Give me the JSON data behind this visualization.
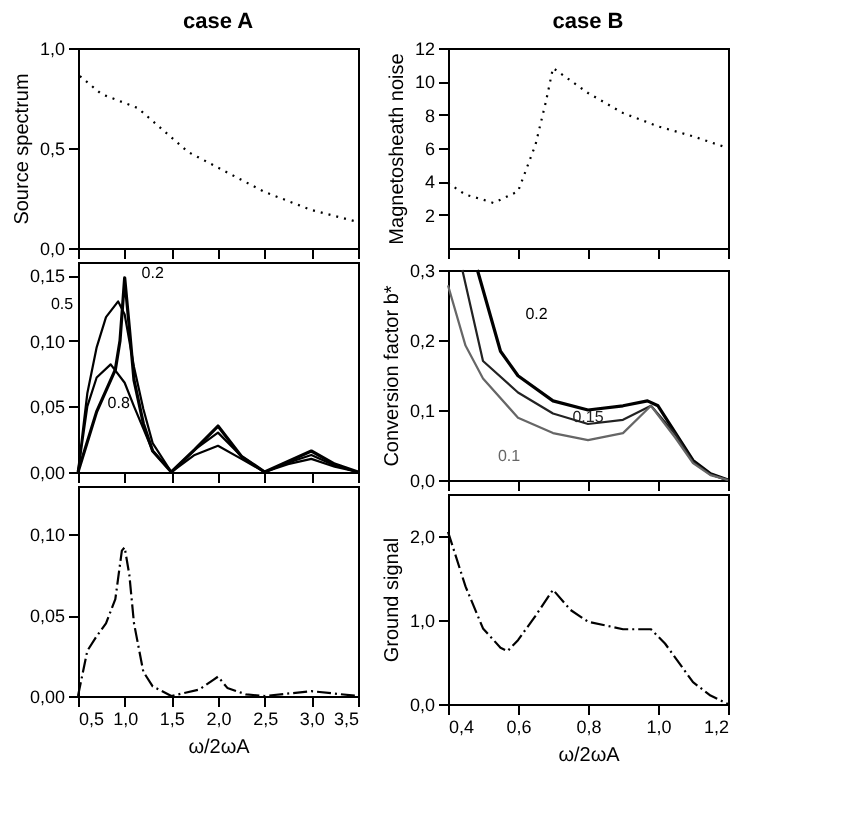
{
  "chart_data": [
    {
      "type": "line",
      "title": "case A",
      "ylabel": "Source spectrum",
      "line_style": "dotted",
      "tick_labels": "y",
      "xlim": [
        0.5,
        3.5
      ],
      "xticks": [
        0.5,
        1,
        1.5,
        2,
        2.5,
        3,
        3.5
      ],
      "ylim": [
        0,
        1
      ],
      "yticks": [
        {
          "value": 0,
          "label": "0,0"
        },
        {
          "value": 0.5,
          "label": "0,5"
        },
        {
          "value": 1,
          "label": "1,0"
        }
      ],
      "series": [
        {
          "color": "#000000",
          "x": [
            0.52,
            0.75,
            1.14,
            1.68,
            2.5,
            3.0,
            3.5
          ],
          "values": [
            0.86,
            0.77,
            0.7,
            0.48,
            0.28,
            0.19,
            0.13
          ]
        }
      ]
    },
    {
      "type": "line",
      "title": "case B",
      "ylabel": "Magnetosheath noise",
      "line_style": "dotted",
      "tick_labels": "y",
      "xlim": [
        0.4,
        1.2
      ],
      "xticks": [
        0.4,
        0.6,
        0.8,
        1.0,
        1.2
      ],
      "ylim": [
        0,
        12
      ],
      "yticks": [
        2,
        4,
        6,
        8,
        10,
        12
      ],
      "series": [
        {
          "color": "#000000",
          "x": [
            0.4,
            0.45,
            0.5,
            0.53,
            0.6,
            0.65,
            0.68,
            0.7,
            0.8,
            0.9,
            1.0,
            1.1,
            1.2
          ],
          "values": [
            3.9,
            3.2,
            2.9,
            2.7,
            3.4,
            6.2,
            8.8,
            10.8,
            9.3,
            8.1,
            7.3,
            6.7,
            6.0
          ]
        }
      ]
    },
    {
      "type": "line",
      "line_style": "solid",
      "tick_labels": "y",
      "xlim": [
        0.5,
        3.5
      ],
      "xticks": [
        0.5,
        1,
        1.5,
        2,
        2.5,
        3,
        3.5
      ],
      "ylim": [
        0,
        0.16
      ],
      "yticks": [
        {
          "value": 0,
          "label": "0,00"
        },
        {
          "value": 0.05,
          "label": "0,05"
        },
        {
          "value": 0.1,
          "label": "0,10"
        },
        {
          "value": 0.15,
          "label": "0,15"
        }
      ],
      "series": [
        {
          "name": "0.2",
          "color": "#000000",
          "x": [
            0.5,
            0.7,
            0.9,
            0.95,
            1.0,
            1.05,
            1.1,
            1.2,
            1.3,
            1.5,
            1.75,
            2.0,
            2.25,
            2.5,
            2.75,
            3.0,
            3.25,
            3.5
          ],
          "values": [
            0,
            0.046,
            0.078,
            0.1,
            0.148,
            0.11,
            0.07,
            0.037,
            0.016,
            0,
            0.017,
            0.035,
            0.012,
            0,
            0.008,
            0.016,
            0.006,
            0
          ]
        },
        {
          "name": "0.5",
          "color": "#000000",
          "x": [
            0.5,
            0.6,
            0.7,
            0.8,
            0.93,
            1.0,
            1.1,
            1.2,
            1.3,
            1.5,
            1.75,
            2.0,
            2.25,
            2.5,
            2.75,
            3.0,
            3.25,
            3.5
          ],
          "values": [
            0,
            0.06,
            0.095,
            0.118,
            0.13,
            0.12,
            0.08,
            0.048,
            0.022,
            0,
            0.017,
            0.03,
            0.012,
            0,
            0.007,
            0.013,
            0.005,
            0
          ]
        },
        {
          "name": "0.8",
          "color": "#000000",
          "x": [
            0.5,
            0.6,
            0.7,
            0.85,
            1.0,
            1.1,
            1.2,
            1.3,
            1.5,
            1.75,
            2.0,
            2.25,
            2.5,
            2.75,
            3.0,
            3.25,
            3.5
          ],
          "values": [
            0,
            0.05,
            0.072,
            0.082,
            0.068,
            0.05,
            0.033,
            0.016,
            0,
            0.013,
            0.02,
            0.01,
            0,
            0.006,
            0.01,
            0.004,
            0
          ]
        }
      ]
    },
    {
      "type": "line",
      "ylabel": "Conversion factor b*",
      "line_style": "solid",
      "tick_labels": "y",
      "xlim": [
        0.4,
        1.2
      ],
      "xticks": [
        0.4,
        0.6,
        0.8,
        1.0,
        1.2
      ],
      "ylim": [
        0,
        0.3
      ],
      "yticks": [
        {
          "value": 0,
          "label": "0,0"
        },
        {
          "value": 0.1,
          "label": "0,1"
        },
        {
          "value": 0.2,
          "label": "0,2"
        },
        {
          "value": 0.3,
          "label": "0,3"
        }
      ],
      "series": [
        {
          "name": "0.2",
          "color": "#000000",
          "x": [
            0.484,
            0.55,
            0.6,
            0.7,
            0.8,
            0.9,
            0.97,
            1.0,
            1.05,
            1.1,
            1.15,
            1.2
          ],
          "values": [
            0.3,
            0.184,
            0.149,
            0.113,
            0.1,
            0.106,
            0.113,
            0.106,
            0.067,
            0.028,
            0.009,
            0
          ]
        },
        {
          "name": "0.15",
          "color": "#222222",
          "x": [
            0.441,
            0.5,
            0.6,
            0.7,
            0.8,
            0.9,
            0.98,
            1.05,
            1.1,
            1.15,
            1.2
          ],
          "values": [
            0.3,
            0.17,
            0.125,
            0.095,
            0.08,
            0.086,
            0.106,
            0.065,
            0.026,
            0.008,
            0
          ]
        },
        {
          "name": "0.1",
          "color": "#666666",
          "x": [
            0.4,
            0.45,
            0.5,
            0.6,
            0.7,
            0.8,
            0.9,
            0.98,
            1.05,
            1.1,
            1.15,
            1.2
          ],
          "values": [
            0.278,
            0.192,
            0.145,
            0.089,
            0.067,
            0.057,
            0.067,
            0.106,
            0.06,
            0.024,
            0.007,
            0
          ]
        }
      ]
    },
    {
      "type": "line",
      "xlabel": "ω/2ωA",
      "line_style": "dashed",
      "xlim": [
        0.5,
        3.5
      ],
      "xticks": [
        {
          "value": 0.5,
          "label": "0,5"
        },
        {
          "value": 1,
          "label": "1,0"
        },
        {
          "value": 1.5,
          "label": "1,5"
        },
        {
          "value": 2,
          "label": "2,0"
        },
        {
          "value": 2.5,
          "label": "2,5"
        },
        {
          "value": 3,
          "label": "3,0"
        },
        {
          "value": 3.5,
          "label": "3,5"
        }
      ],
      "ylim": [
        0,
        0.13
      ],
      "yticks": [
        {
          "value": 0,
          "label": "0,00"
        },
        {
          "value": 0.05,
          "label": "0,05"
        },
        {
          "value": 0.1,
          "label": "0,10"
        }
      ],
      "series": [
        {
          "color": "#000000",
          "x": [
            0.5,
            0.6,
            0.7,
            0.8,
            0.9,
            0.97,
            1.0,
            1.05,
            1.1,
            1.2,
            1.3,
            1.5,
            1.8,
            1.95,
            2.0,
            2.1,
            2.3,
            2.5,
            3.0,
            3.5
          ],
          "values": [
            0,
            0.028,
            0.037,
            0.045,
            0.06,
            0.09,
            0.092,
            0.075,
            0.045,
            0.015,
            0.006,
            0,
            0.004,
            0.01,
            0.012,
            0.005,
            0.001,
            0,
            0.003,
            0
          ]
        }
      ]
    },
    {
      "type": "line",
      "ylabel": "Ground signal",
      "xlabel": "ω/2ωA",
      "line_style": "dashed",
      "xlim": [
        0.4,
        1.2
      ],
      "xticks": [
        {
          "value": 0.4,
          "label": "0,4"
        },
        {
          "value": 0.6,
          "label": "0,6"
        },
        {
          "value": 0.8,
          "label": "0,8"
        },
        {
          "value": 1.0,
          "label": "1,0"
        },
        {
          "value": 1.2,
          "label": "1,2"
        }
      ],
      "ylim": [
        0,
        2.5
      ],
      "yticks": [
        {
          "value": 0,
          "label": "0,0"
        },
        {
          "value": 1,
          "label": "1,0"
        },
        {
          "value": 2,
          "label": "2,0"
        }
      ],
      "series": [
        {
          "color": "#000000",
          "x": [
            0.4,
            0.45,
            0.5,
            0.55,
            0.57,
            0.6,
            0.65,
            0.7,
            0.75,
            0.8,
            0.9,
            0.98,
            1.02,
            1.1,
            1.15,
            1.2
          ],
          "values": [
            2.05,
            1.4,
            0.9,
            0.67,
            0.63,
            0.76,
            1.05,
            1.36,
            1.12,
            0.98,
            0.89,
            0.89,
            0.72,
            0.26,
            0.1,
            0
          ]
        }
      ]
    }
  ]
}
